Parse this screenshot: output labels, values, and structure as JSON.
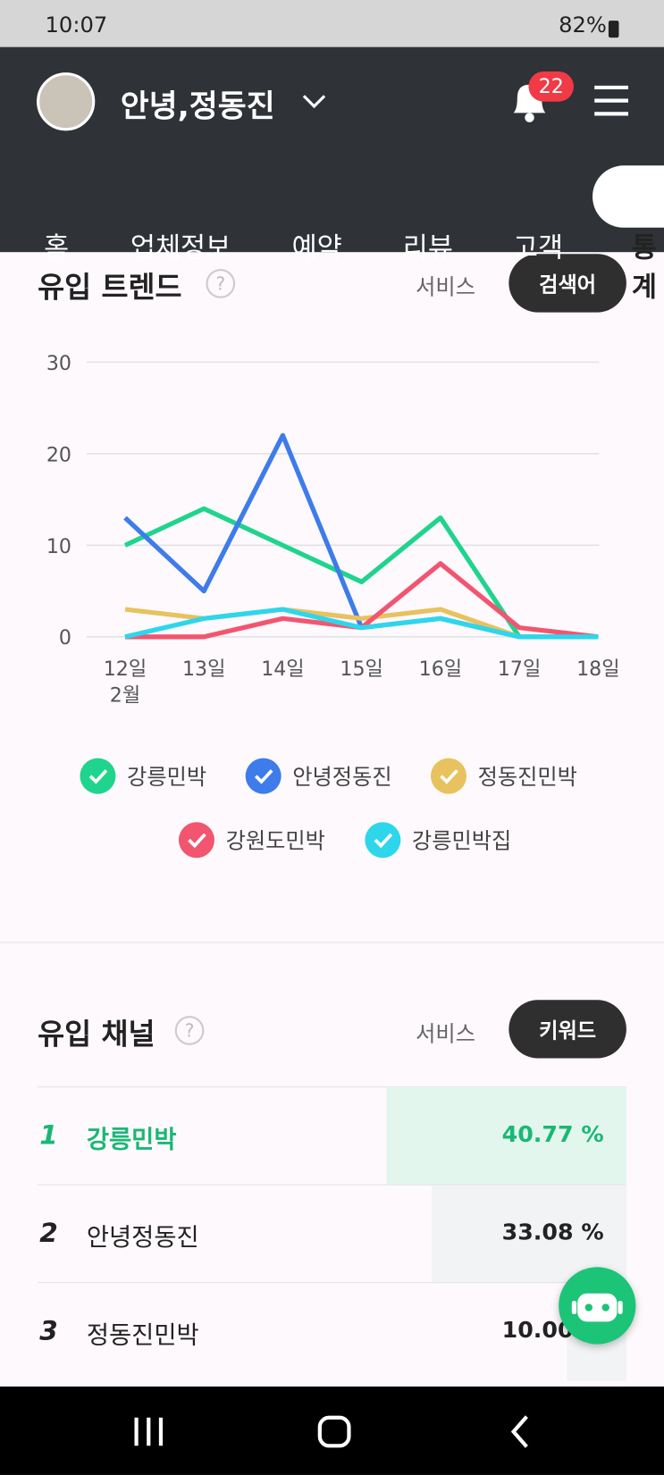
{
  "status_bar": {
    "time": "10:07",
    "battery": "82%"
  },
  "header": {
    "greeting": "안녕,정동진",
    "notifications": "22"
  },
  "tabs": [
    "홈",
    "업체정보",
    "예약",
    "리뷰",
    "고객",
    "통계"
  ],
  "trend": {
    "title": "유입 트렌드",
    "options": [
      "서비스",
      "검색어"
    ],
    "chart_data": {
      "type": "line",
      "categories": [
        "12일",
        "13일",
        "14일",
        "15일",
        "16일",
        "17일",
        "18일"
      ],
      "x_sublabel": "2월",
      "ylim": [
        0,
        30
      ],
      "yticks": [
        0,
        10,
        20,
        30
      ],
      "grid": true,
      "series": [
        {
          "name": "강릉민박",
          "color": "#1fd48c",
          "values": [
            10,
            14,
            10,
            6,
            13,
            0,
            0
          ]
        },
        {
          "name": "안녕정동진",
          "color": "#3d7cea",
          "values": [
            13,
            5,
            22,
            1,
            2,
            0,
            0
          ]
        },
        {
          "name": "정동진민박",
          "color": "#e7c25e",
          "values": [
            3,
            2,
            3,
            2,
            3,
            0,
            0
          ]
        },
        {
          "name": "강원도민박",
          "color": "#f25570",
          "values": [
            0,
            0,
            2,
            1,
            8,
            1,
            0
          ]
        },
        {
          "name": "강릉민박집",
          "color": "#2ed6ec",
          "values": [
            0,
            2,
            3,
            1,
            2,
            0,
            0
          ]
        }
      ]
    }
  },
  "channel": {
    "title": "유입 채널",
    "options": [
      "서비스",
      "키워드"
    ],
    "rows": [
      {
        "rank": "1",
        "name": "강릉민박",
        "share": 40.77,
        "share_label": "40.77 %"
      },
      {
        "rank": "2",
        "name": "안녕정동진",
        "share": 33.08,
        "share_label": "33.08 %"
      },
      {
        "rank": "3",
        "name": "정동진민박",
        "share": 10.0,
        "share_label": "10.00 %"
      }
    ]
  }
}
